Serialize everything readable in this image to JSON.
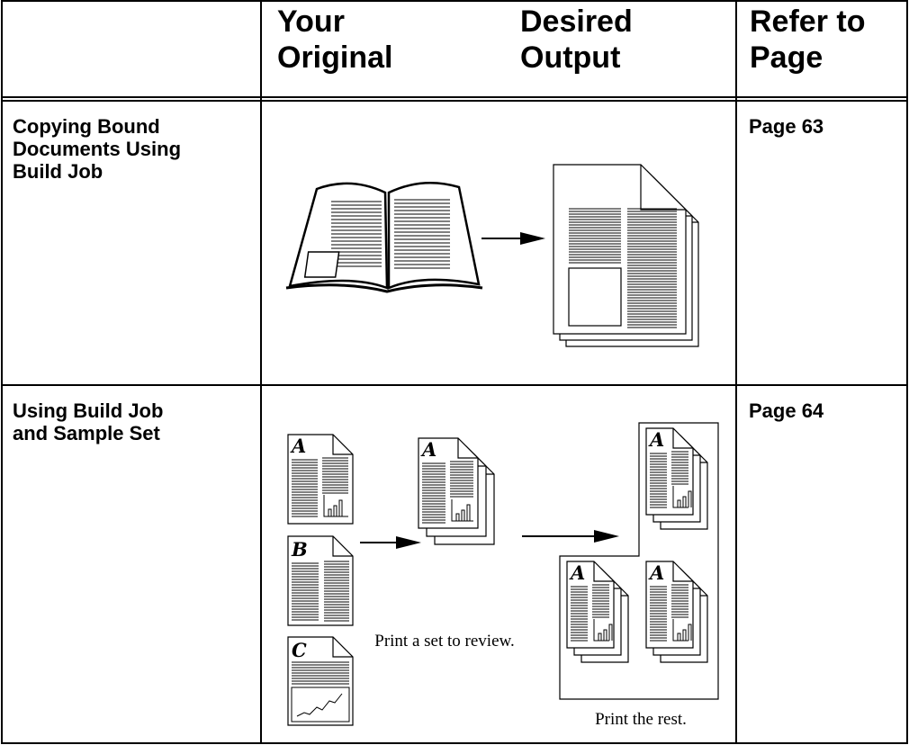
{
  "header": {
    "columns": [
      "Your Original",
      "Desired Output",
      "Refer to Page"
    ]
  },
  "rows": [
    {
      "title": "Copying Bound Documents Using Build Job",
      "page": "Page 63"
    },
    {
      "title": "Using Build Job and Sample Set",
      "page": "Page 64",
      "captions": [
        "Print a set to review.",
        "Print the rest."
      ],
      "page_letters": [
        "A",
        "B",
        "C"
      ]
    }
  ]
}
